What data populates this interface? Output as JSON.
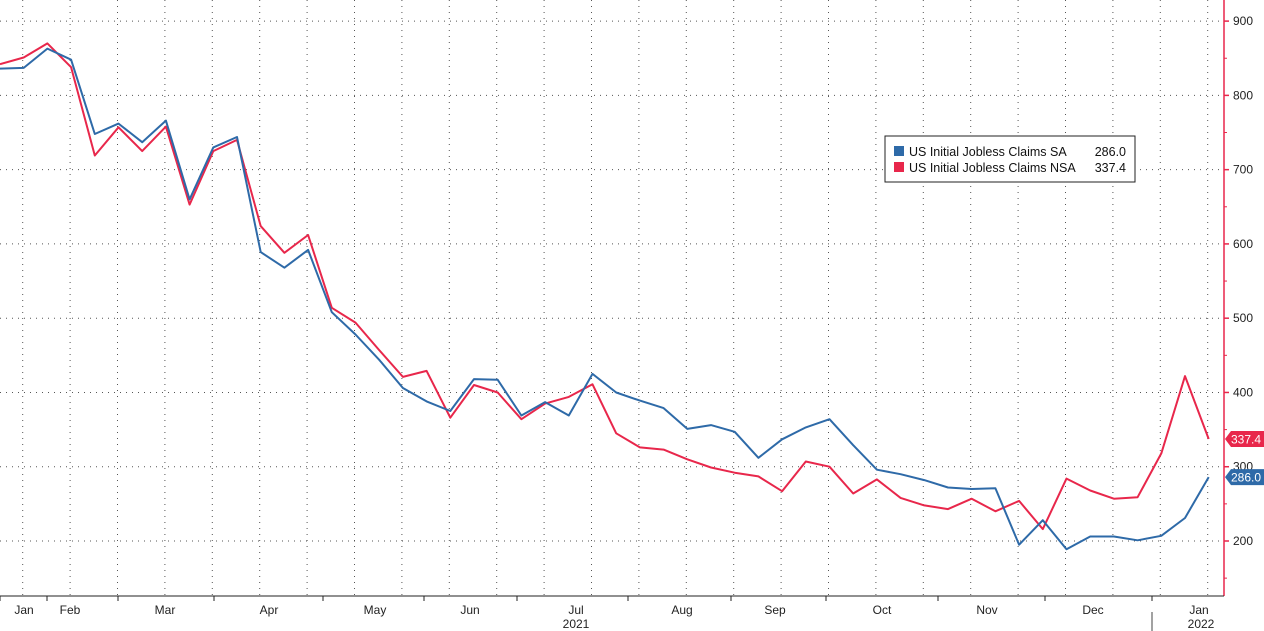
{
  "chart_data": {
    "type": "line",
    "title": "",
    "xlabel": "",
    "ylabel": "",
    "ylim": [
      135,
      925
    ],
    "y_ticks": [
      "200",
      "300",
      "400",
      "500",
      "600",
      "700",
      "800",
      "900"
    ],
    "month_labels": [
      "Jan",
      "Feb",
      "Mar",
      "Apr",
      "May",
      "Jun",
      "Jul",
      "Aug",
      "Sep",
      "Oct",
      "Nov",
      "Dec",
      "Jan"
    ],
    "year_labels": [
      "2021",
      "2022"
    ],
    "grid": true,
    "legend_position": "top-right",
    "colors": {
      "sa": "#2e6aa8",
      "nsa": "#e8274b",
      "axis": "#e8274b"
    },
    "series": [
      {
        "name": "US Initial Jobless Claims SA",
        "last_value": "286.0",
        "values": [
          836,
          837,
          863,
          848,
          748,
          762,
          737,
          766,
          660,
          730,
          744,
          589,
          568,
          592,
          508,
          478,
          444,
          406,
          388,
          375,
          418,
          417,
          369,
          387,
          369,
          425,
          400,
          389,
          379,
          351,
          356,
          347,
          312,
          337,
          353,
          364,
          329,
          296,
          290,
          282,
          272,
          270,
          271,
          195,
          228,
          189,
          206,
          206,
          201,
          207,
          231,
          286
        ]
      },
      {
        "name": "US Initial Jobless Claims NSA",
        "last_value": "337.4",
        "values": [
          842,
          851,
          870,
          838,
          719,
          757,
          725,
          758,
          653,
          725,
          740,
          624,
          588,
          612,
          514,
          494,
          457,
          421,
          429,
          366,
          410,
          400,
          364,
          385,
          394,
          411,
          345,
          326,
          323,
          310,
          299,
          292,
          287,
          267,
          307,
          300,
          264,
          283,
          258,
          248,
          243,
          257,
          240,
          254,
          216,
          284,
          268,
          257,
          259,
          318,
          422,
          337.4
        ]
      }
    ]
  }
}
